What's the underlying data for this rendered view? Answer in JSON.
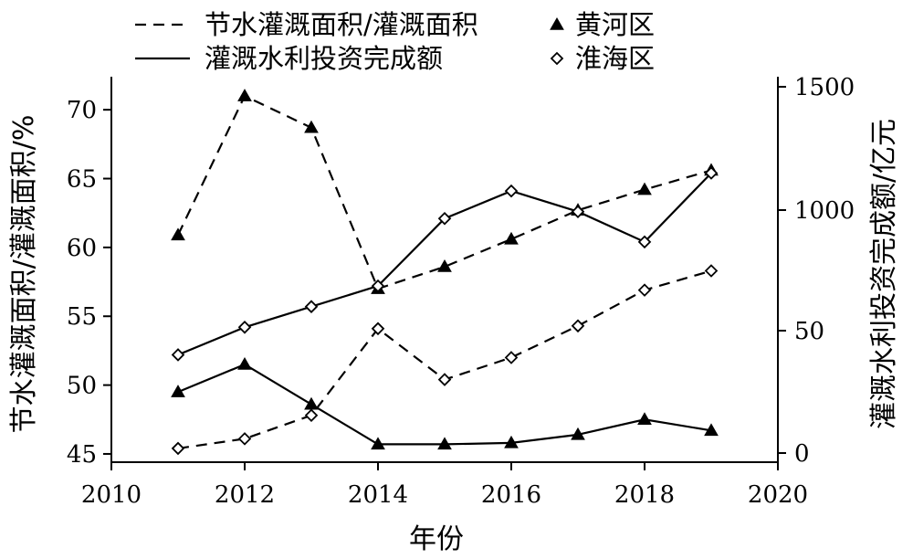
{
  "chart_data": {
    "type": "line",
    "xlabel": "年份",
    "ylabel_left": "节水灌溉面积/灌溉面积/%",
    "ylabel_right": "灌溉水利投资完成额/亿元",
    "x_ticks": [
      2010,
      2012,
      2014,
      2016,
      2018,
      2020
    ],
    "y_left_ticks": [
      45,
      50,
      55,
      60,
      65,
      70
    ],
    "y_right_ticks": [
      0,
      50,
      1000,
      1500
    ],
    "legend": {
      "line_styles": [
        {
          "label": "节水灌溉面积/灌溉面积",
          "dash": "dashed"
        },
        {
          "label": "灌溉水利投资完成额",
          "dash": "solid"
        }
      ],
      "markers": [
        {
          "label": "黄河区",
          "marker": "triangle"
        },
        {
          "label": "淮海区",
          "marker": "diamond"
        }
      ]
    },
    "x": [
      2011,
      2012,
      2013,
      2014,
      2015,
      2016,
      2017,
      2018,
      2019
    ],
    "series": [
      {
        "name": "黄河区",
        "metric": "节水灌溉面积/灌溉面积",
        "axis": "left",
        "dash": "dashed",
        "marker": "triangle",
        "values": [
          60.9,
          71.0,
          68.7,
          57.0,
          58.6,
          60.6,
          62.7,
          64.2,
          65.6
        ]
      },
      {
        "name": "淮海区",
        "metric": "节水灌溉面积/灌溉面积",
        "axis": "left",
        "dash": "dashed",
        "marker": "diamond",
        "values": [
          45.4,
          46.1,
          47.8,
          54.1,
          50.4,
          52.0,
          54.3,
          56.9,
          58.3
        ]
      },
      {
        "name": "黄河区",
        "metric": "灌溉水利投资完成额",
        "axis": "left",
        "dash": "solid",
        "marker": "triangle",
        "values": [
          49.5,
          51.5,
          48.6,
          45.7,
          45.7,
          45.8,
          46.4,
          47.5,
          46.7
        ]
      },
      {
        "name": "淮海区",
        "metric": "灌溉水利投资完成额",
        "axis": "left",
        "dash": "solid",
        "marker": "diamond",
        "values": [
          52.2,
          54.2,
          55.7,
          57.2,
          62.1,
          64.1,
          62.6,
          60.4,
          65.4
        ]
      }
    ]
  }
}
